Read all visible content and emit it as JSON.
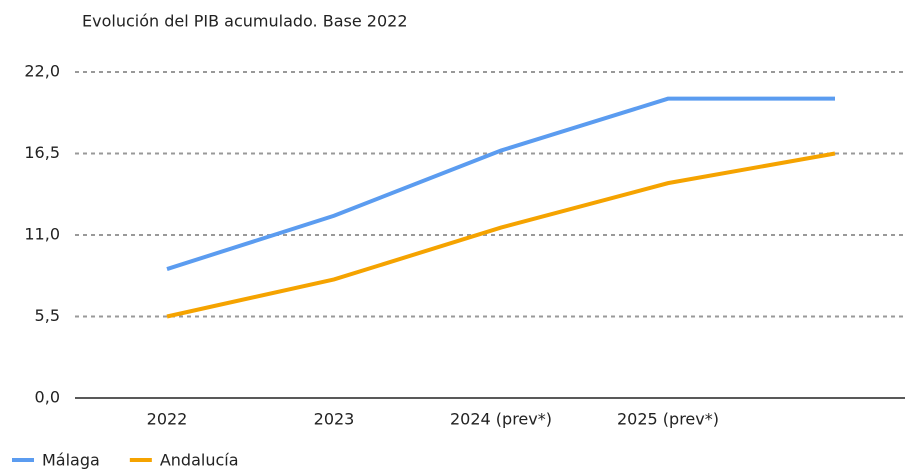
{
  "chart_data": {
    "type": "line",
    "title": "Evolución del PIB acumulado. Base 2022",
    "categories": [
      "2022",
      "2023",
      "2024 (prev*)",
      "2025 (prev*)",
      null
    ],
    "series": [
      {
        "name": "Málaga",
        "color": "#5b9cf0",
        "values": [
          8.7,
          12.3,
          16.7,
          20.2,
          20.2
        ]
      },
      {
        "name": "Andalucía",
        "color": "#f5a300",
        "values": [
          5.5,
          8.0,
          11.5,
          14.5,
          16.5
        ]
      }
    ],
    "ylim": [
      0,
      22
    ],
    "yticks": [
      {
        "value": 0,
        "label": "0,0"
      },
      {
        "value": 5.5,
        "label": "5,5"
      },
      {
        "value": 11,
        "label": "11,0"
      },
      {
        "value": 16.5,
        "label": "16,5"
      },
      {
        "value": 22,
        "label": "22,0"
      }
    ],
    "grid": true,
    "legend": "bottom-left"
  }
}
